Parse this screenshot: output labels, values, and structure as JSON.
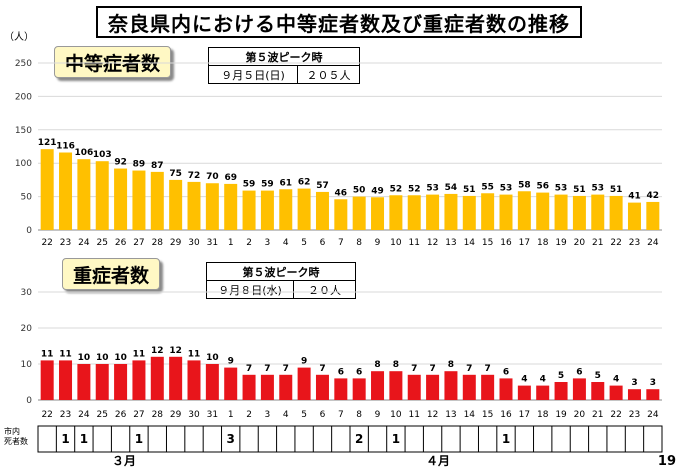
{
  "title": "奈良県内における中等症者数及び重症者数の推移",
  "unit_label": "（人）",
  "moderate": {
    "label": "中等症者数",
    "peak_title": "第５波ピーク時",
    "peak_date": "９月５日(日)",
    "peak_value": "２０５人"
  },
  "severe": {
    "label": "重症者数",
    "peak_title": "第５波ピーク時",
    "peak_date": "９月８日(水)",
    "peak_value": "２０人"
  },
  "deaths_label_line1": "市内",
  "deaths_label_line2": "死者数",
  "month_march": "３月",
  "month_april": "４月",
  "page_number": "19",
  "colors": {
    "moderate_bar": "#FFC000",
    "severe_bar": "#E8151B"
  },
  "chart_data": [
    {
      "type": "bar",
      "title": "中等症者数",
      "categories": [
        "22",
        "23",
        "24",
        "25",
        "26",
        "27",
        "28",
        "29",
        "30",
        "31",
        "1",
        "2",
        "3",
        "4",
        "5",
        "6",
        "7",
        "8",
        "9",
        "10",
        "11",
        "12",
        "13",
        "14",
        "15",
        "16",
        "17",
        "18",
        "19",
        "20",
        "21",
        "22",
        "23",
        "24"
      ],
      "values": [
        121,
        116,
        106,
        103,
        92,
        89,
        87,
        75,
        72,
        70,
        69,
        59,
        59,
        61,
        62,
        57,
        46,
        50,
        49,
        52,
        52,
        53,
        54,
        51,
        55,
        53,
        58,
        56,
        53,
        51,
        53,
        51,
        41,
        42
      ],
      "ylim": [
        0,
        250
      ],
      "yticks": [
        0,
        50,
        100,
        150,
        200,
        250
      ]
    },
    {
      "type": "bar",
      "title": "重症者数",
      "categories": [
        "22",
        "23",
        "24",
        "25",
        "26",
        "27",
        "28",
        "29",
        "30",
        "31",
        "1",
        "2",
        "3",
        "4",
        "5",
        "6",
        "7",
        "8",
        "9",
        "10",
        "11",
        "12",
        "13",
        "14",
        "15",
        "16",
        "17",
        "18",
        "19",
        "20",
        "21",
        "22",
        "23",
        "24"
      ],
      "values": [
        11,
        11,
        10,
        10,
        10,
        11,
        12,
        12,
        11,
        10,
        9,
        7,
        7,
        7,
        9,
        7,
        6,
        6,
        8,
        8,
        7,
        7,
        8,
        7,
        7,
        6,
        4,
        4,
        5,
        6,
        5,
        4,
        3,
        3
      ],
      "ylim": [
        0,
        30
      ],
      "yticks": [
        0,
        10,
        20,
        30
      ]
    },
    {
      "type": "table",
      "title": "市内死者数",
      "values": [
        "",
        "1",
        "1",
        "",
        "",
        "1",
        "",
        "",
        "",
        "",
        "3",
        "",
        "",
        "",
        "",
        "",
        "",
        "2",
        "",
        "1",
        "",
        "",
        "",
        "",
        "",
        "1",
        "",
        "",
        "",
        "",
        "",
        "",
        "",
        ""
      ]
    }
  ]
}
